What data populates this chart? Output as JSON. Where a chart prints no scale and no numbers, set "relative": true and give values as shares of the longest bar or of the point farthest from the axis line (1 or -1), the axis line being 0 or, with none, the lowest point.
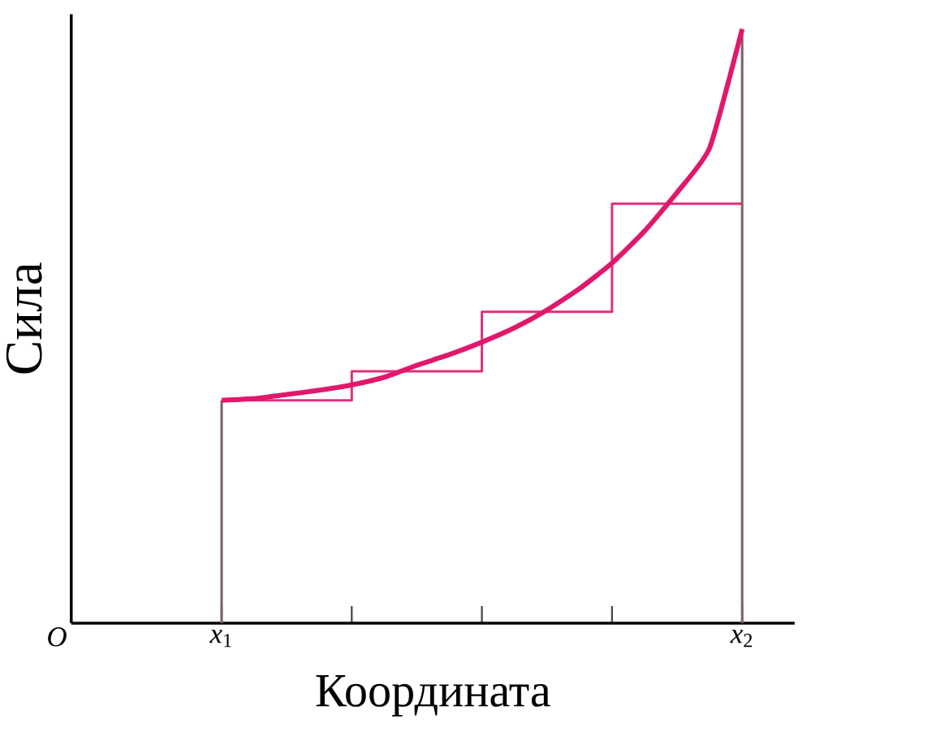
{
  "chart_data": {
    "type": "line",
    "relative": true,
    "xlabel": "Координата",
    "ylabel": "Сила",
    "categories": [
      "*x*$_{1}$",
      null,
      null,
      null,
      null,
      null,
      null,
      null,
      null,
      null,
      null,
      null,
      null,
      null,
      null,
      null,
      "*x*$_{2}$"
    ],
    "annotations": [
      "*O*"
    ],
    "ref_lines": [
      {
        "axis": "x",
        "value": "*x*$_{1}$",
        "color": "#7a6068"
      },
      {
        "axis": "x",
        "value": "*x*$_{2}$",
        "color": "#7a6068"
      }
    ],
    "series": [
      {
        "type": "step",
        "color": "#e0307a",
        "values": [
          0.375,
          0.375,
          0.375,
          0.375,
          0.424,
          0.424,
          0.424,
          0.424,
          0.524,
          0.524,
          0.524,
          0.524,
          0.706,
          0.706,
          0.706,
          0.706,
          0.706
        ]
      },
      {
        "color": "#e0186c",
        "values": [
          0.375,
          0.378,
          0.385,
          0.392,
          0.401,
          0.414,
          0.434,
          0.452,
          0.473,
          0.497,
          0.527,
          0.563,
          0.606,
          0.66,
          0.725,
          0.8,
          1
        ]
      }
    ]
  }
}
